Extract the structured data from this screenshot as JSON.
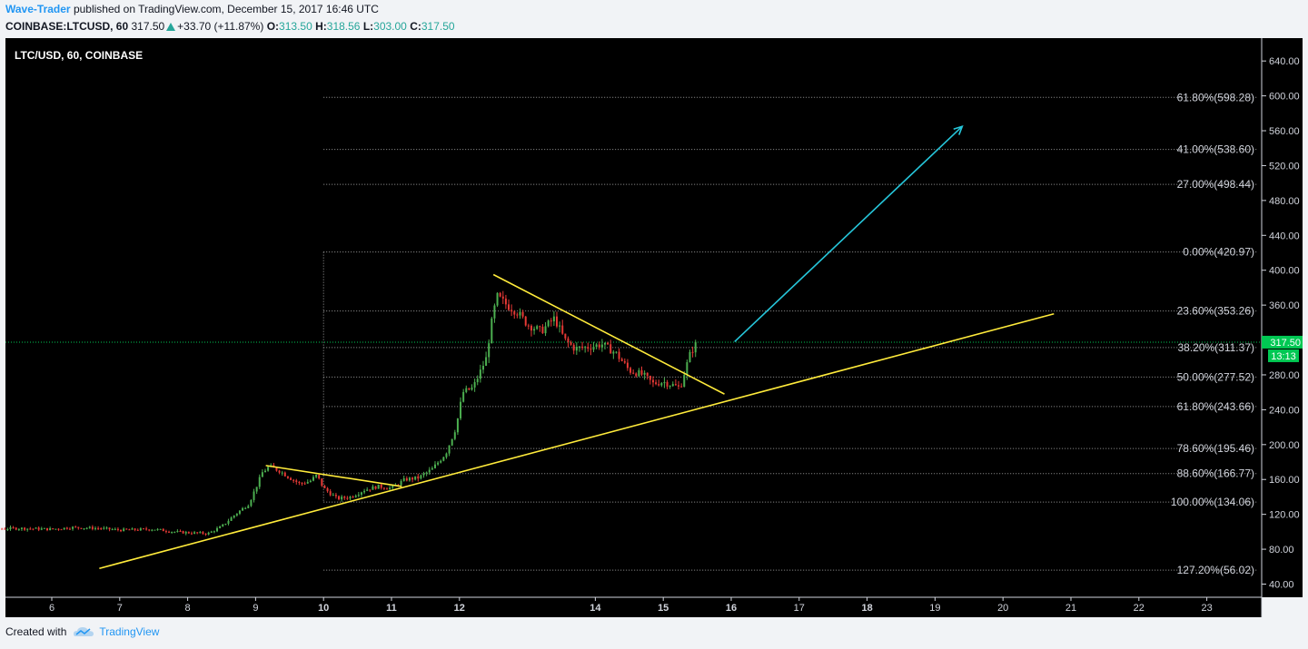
{
  "header": {
    "author": "Wave-Trader",
    "published": "published on TradingView.com, December 15, 2017 16:46 UTC",
    "symbol": "COINBASE:LTCUSD, 60",
    "last": "317.50",
    "change": "+33.70 (+11.87%)",
    "o_label": "O:",
    "o": "313.50",
    "h_label": "H:",
    "h": "318.56",
    "l_label": "L:",
    "l": "303.00",
    "c_label": "C:",
    "c": "317.50"
  },
  "chart_data": {
    "type": "candlestick",
    "title": "LTC/USD, 60, COINBASE",
    "ylim": [
      30,
      660
    ],
    "y_ticks": [
      "640.00",
      "600.00",
      "560.00",
      "520.00",
      "480.00",
      "440.00",
      "400.00",
      "360.00",
      "320.00",
      "280.00",
      "240.00",
      "200.00",
      "160.00",
      "120.00",
      "80.00",
      "40.00"
    ],
    "y_tick_values": [
      640,
      600,
      560,
      520,
      480,
      440,
      400,
      360,
      320,
      280,
      240,
      200,
      160,
      120,
      80,
      40
    ],
    "x_ticks": [
      "6",
      "7",
      "8",
      "9",
      "10",
      "11",
      "12",
      "14",
      "15",
      "16",
      "17",
      "18",
      "19",
      "20",
      "21",
      "22",
      "23"
    ],
    "x_tick_days": [
      6,
      7,
      8,
      9,
      10,
      11,
      12,
      14,
      15,
      16,
      17,
      18,
      19,
      20,
      21,
      22,
      23
    ],
    "x_tick_bold": [
      "10",
      "11",
      "12",
      "14",
      "15",
      "16",
      "18"
    ],
    "last_price_label": "317.50",
    "countdown_label": "13:13",
    "last_price": 317.5,
    "fib_levels": [
      {
        "label": "61.80%(598.28)",
        "value": 598.28
      },
      {
        "label": "41.00%(538.60)",
        "value": 538.6
      },
      {
        "label": "27.00%(498.44)",
        "value": 498.44
      },
      {
        "label": "0.00%(420.97)",
        "value": 420.97
      },
      {
        "label": "23.60%(353.26)",
        "value": 353.26
      },
      {
        "label": "38.20%(311.37)",
        "value": 311.37
      },
      {
        "label": "50.00%(277.52)",
        "value": 277.52
      },
      {
        "label": "61.80%(243.66)",
        "value": 243.66
      },
      {
        "label": "78.60%(195.46)",
        "value": 195.46
      },
      {
        "label": "88.60%(166.77)",
        "value": 166.77
      },
      {
        "label": "100.00%(134.06)",
        "value": 134.06
      },
      {
        "label": "127.20%(56.02)",
        "value": 56.02
      }
    ],
    "fib_start_day": 10.0,
    "price_path": [
      [
        5.0,
        103
      ],
      [
        5.5,
        104
      ],
      [
        6.0,
        103
      ],
      [
        6.3,
        105
      ],
      [
        6.7,
        104
      ],
      [
        7.0,
        102
      ],
      [
        7.5,
        103
      ],
      [
        7.8,
        100
      ],
      [
        8.0,
        99
      ],
      [
        8.3,
        98
      ],
      [
        8.5,
        106
      ],
      [
        8.7,
        120
      ],
      [
        8.9,
        132
      ],
      [
        9.0,
        150
      ],
      [
        9.1,
        168
      ],
      [
        9.2,
        175
      ],
      [
        9.35,
        170
      ],
      [
        9.5,
        162
      ],
      [
        9.65,
        155
      ],
      [
        9.8,
        158
      ],
      [
        9.9,
        165
      ],
      [
        10.0,
        150
      ],
      [
        10.2,
        138
      ],
      [
        10.4,
        140
      ],
      [
        10.6,
        148
      ],
      [
        10.8,
        152
      ],
      [
        11.0,
        150
      ],
      [
        11.2,
        160
      ],
      [
        11.4,
        162
      ],
      [
        11.6,
        172
      ],
      [
        11.8,
        190
      ],
      [
        11.95,
        220
      ],
      [
        12.05,
        260
      ],
      [
        12.2,
        265
      ],
      [
        12.4,
        300
      ],
      [
        12.45,
        330
      ],
      [
        12.55,
        370
      ],
      [
        12.7,
        360
      ],
      [
        12.85,
        352
      ],
      [
        13.0,
        338
      ],
      [
        13.2,
        330
      ],
      [
        13.4,
        345
      ],
      [
        13.55,
        320
      ],
      [
        13.7,
        310
      ],
      [
        13.9,
        312
      ],
      [
        14.1,
        315
      ],
      [
        14.3,
        305
      ],
      [
        14.5,
        285
      ],
      [
        14.7,
        280
      ],
      [
        14.85,
        270
      ],
      [
        15.0,
        272
      ],
      [
        15.15,
        268
      ],
      [
        15.25,
        265
      ],
      [
        15.3,
        280
      ],
      [
        15.4,
        305
      ],
      [
        15.5,
        318
      ]
    ],
    "trendlines": [
      {
        "name": "support",
        "color": "#ffeb3b",
        "points": [
          [
            6.7,
            58
          ],
          [
            20.75,
            350
          ]
        ]
      },
      {
        "name": "wedge-top",
        "color": "#ffeb3b",
        "points": [
          [
            12.5,
            395
          ],
          [
            15.9,
            258
          ]
        ]
      },
      {
        "name": "pennant-top",
        "color": "#ffeb3b",
        "points": [
          [
            9.15,
            176
          ],
          [
            11.15,
            152
          ]
        ]
      },
      {
        "name": "projection",
        "color": "#26c6da",
        "points": [
          [
            16.05,
            318
          ],
          [
            19.4,
            565
          ]
        ]
      }
    ]
  },
  "footer": {
    "created_with": "Created with",
    "brand": "TradingView"
  },
  "colors": {
    "up": "#4caf50",
    "down": "#e53935",
    "accent": "#2196f3",
    "last_price_bg": "#00c853"
  }
}
